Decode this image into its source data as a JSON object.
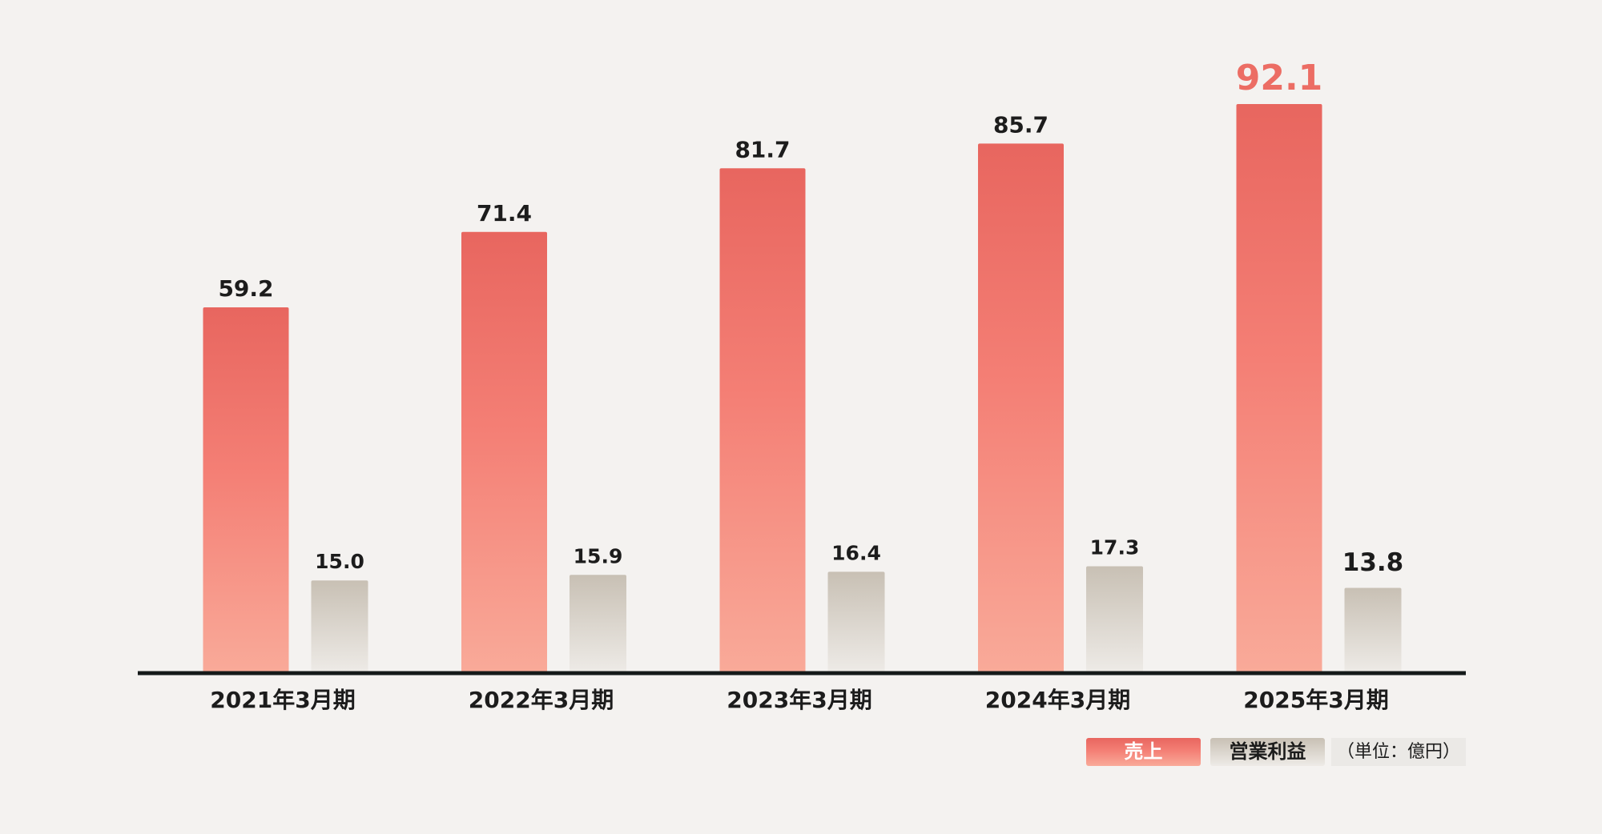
{
  "chart_data": {
    "type": "bar",
    "categories": [
      "2021年3月期",
      "2022年3月期",
      "2023年3月期",
      "2024年3月期",
      "2025年3月期"
    ],
    "series": [
      {
        "name": "売上",
        "color": "#ec6d64",
        "values": [
          59.2,
          71.4,
          81.7,
          85.7,
          92.1
        ]
      },
      {
        "name": "営業利益",
        "color": "#cfc8be",
        "values": [
          15,
          15.9,
          16.4,
          17.3,
          13.8
        ],
        "value_labels": [
          "15.0",
          "15.9",
          "16.4",
          "17.3",
          "13.8"
        ]
      }
    ],
    "ylim": [
      0,
      100
    ],
    "unit_note": "（単位：億円）"
  }
}
